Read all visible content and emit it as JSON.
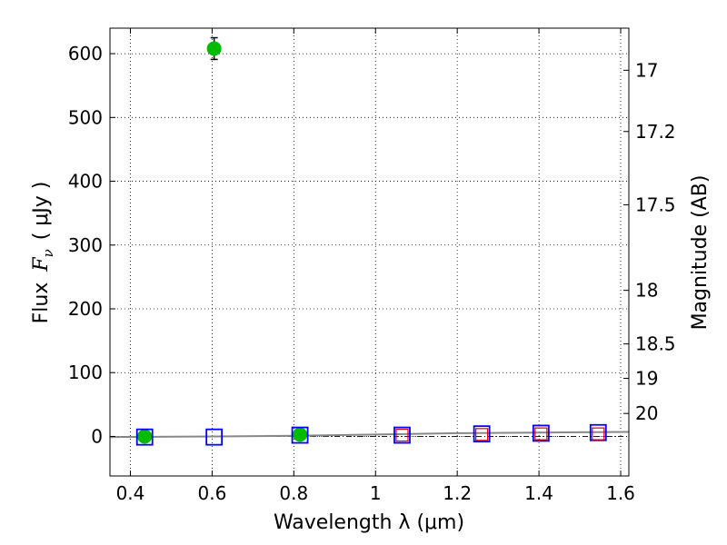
{
  "chart_data": {
    "type": "scatter",
    "xlabel": "Wavelength  λ (μm)",
    "ylabel": {
      "prefix": "Flux",
      "symbol": "F",
      "subscript": "ν",
      "unit": "( μJy )"
    },
    "y2label": "Magnitude (AB)",
    "xlim": [
      0.35,
      1.62
    ],
    "ylim": [
      -62,
      640
    ],
    "grid": true,
    "xticks": [
      0.4,
      0.6,
      0.8,
      1.0,
      1.2,
      1.4,
      1.6
    ],
    "xtick_labels": [
      "0.4",
      "0.6",
      "0.8",
      "1",
      "1.2",
      "1.4",
      "1.6"
    ],
    "yticks": [
      0,
      100,
      200,
      300,
      400,
      500,
      600
    ],
    "ytick_labels": [
      "0",
      "100",
      "200",
      "300",
      "400",
      "500",
      "600"
    ],
    "y2ticks": [
      {
        "label": "17",
        "flux": 574
      },
      {
        "label": "17.2",
        "flux": 478
      },
      {
        "label": "17.5",
        "flux": 363
      },
      {
        "label": "18",
        "flux": 229
      },
      {
        "label": "18.5",
        "flux": 145
      },
      {
        "label": "19",
        "flux": 91
      },
      {
        "label": "20",
        "flux": 36
      }
    ],
    "series": [
      {
        "marker": "circle",
        "color": "#00bb00",
        "points": [
          {
            "x": 0.435,
            "y": 0,
            "err": 1
          },
          {
            "x": 0.605,
            "y": 608,
            "err": 17
          },
          {
            "x": 0.815,
            "y": 3,
            "err": 2
          }
        ]
      },
      {
        "marker": "square",
        "color": "#0000ff",
        "points": [
          {
            "x": 0.435,
            "y": -1
          },
          {
            "x": 0.605,
            "y": -1
          },
          {
            "x": 0.815,
            "y": 2
          },
          {
            "x": 1.065,
            "y": 2
          },
          {
            "x": 1.26,
            "y": 4
          },
          {
            "x": 1.405,
            "y": 5
          },
          {
            "x": 1.545,
            "y": 6
          }
        ]
      },
      {
        "marker": "square",
        "color": "#dd0000",
        "points": [
          {
            "x": 1.065,
            "y": 2
          },
          {
            "x": 1.26,
            "y": 3
          },
          {
            "x": 1.405,
            "y": 4
          },
          {
            "x": 1.545,
            "y": 4
          }
        ]
      }
    ],
    "model_curve": {
      "color": "#888888",
      "x": [
        0.35,
        0.6,
        0.8,
        1.0,
        1.2,
        1.4,
        1.62
      ],
      "y": [
        -1,
        0,
        1,
        3,
        5,
        6,
        7
      ]
    },
    "reference_line": {
      "y": 0,
      "style": "dash-dot",
      "color": "#000000"
    }
  }
}
